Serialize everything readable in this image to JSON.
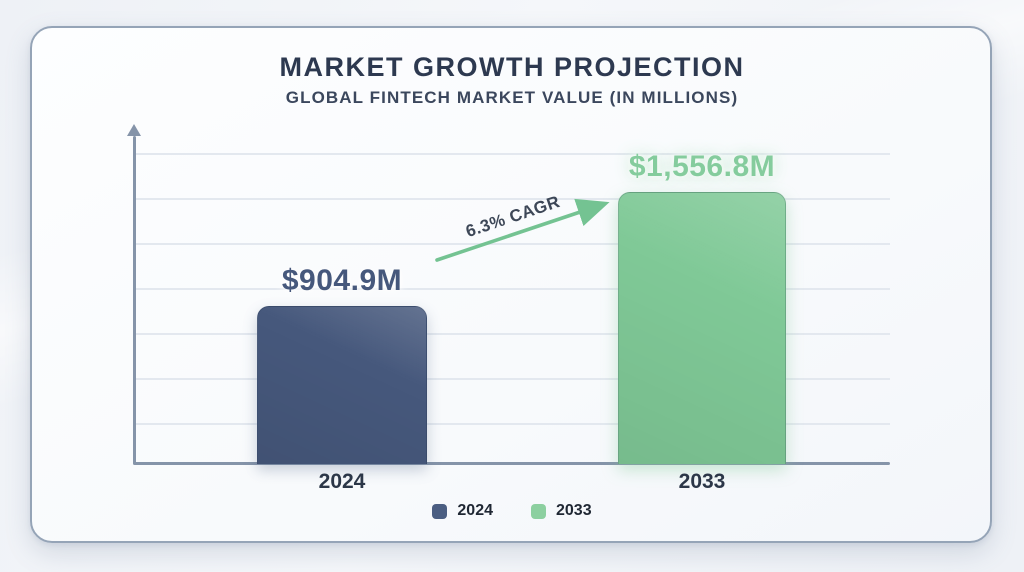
{
  "header": {
    "title": "MARKET GROWTH PROJECTION",
    "subtitle": "GLOBAL FINTECH MARKET VALUE (IN MILLIONS)"
  },
  "chart_data": {
    "type": "bar",
    "title": "MARKET GROWTH PROJECTION",
    "subtitle": "GLOBAL FINTECH MARKET VALUE (IN MILLIONS)",
    "categories": [
      "2024",
      "2033"
    ],
    "values": [
      904.9,
      1556.8
    ],
    "value_labels": [
      "$904.9M",
      "$1,556.8M"
    ],
    "colors": [
      "#46587c",
      "#80c997"
    ],
    "label_colors": [
      "#46587c",
      "#85cc9d"
    ],
    "xlabel": "",
    "ylabel": "",
    "ylim": [
      0,
      1650
    ],
    "grid": true,
    "gridline_count": 7,
    "y_tick_labels_visible": false,
    "legend_position": "bottom",
    "annotation": {
      "text": "6.3% CAGR",
      "type": "arrow",
      "from_category": "2024",
      "to_category": "2033",
      "color": "#74c392"
    }
  },
  "annotation": {
    "label": "6.3% CAGR"
  },
  "legend": [
    {
      "label": "2024",
      "color": "#4b5e82"
    },
    {
      "label": "2033",
      "color": "#8cd0a0"
    }
  ],
  "style_colors": {
    "axis": "#8594a9",
    "gridline": "#e3e8ef",
    "card_border": "#95a4b7",
    "title_text": "#2d3950"
  }
}
